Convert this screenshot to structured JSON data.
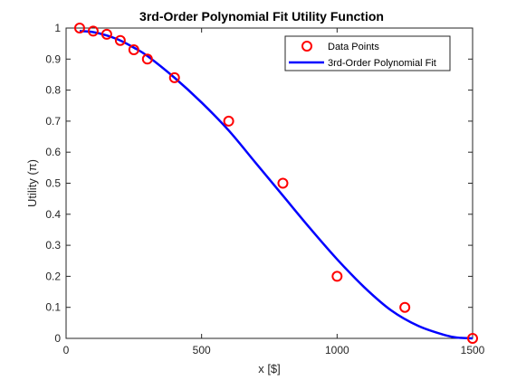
{
  "chart_data": {
    "type": "scatter+line",
    "title": "3rd-Order Polynomial Fit Utility Function",
    "xlabel": "x [$]",
    "ylabel": "Utility (π)",
    "xlim": [
      0,
      1500
    ],
    "ylim": [
      0,
      1
    ],
    "xticks": [
      0,
      500,
      1000,
      1500
    ],
    "yticks": [
      0,
      0.1,
      0.2,
      0.3,
      0.4,
      0.5,
      0.6,
      0.7,
      0.8,
      0.9,
      1
    ],
    "grid": false,
    "legend_location": "top-right",
    "series": [
      {
        "name": "Data Points",
        "kind": "scatter",
        "marker": "circle",
        "color": "#ff0000",
        "x": [
          50,
          100,
          150,
          200,
          250,
          300,
          400,
          600,
          800,
          1000,
          1250,
          1500
        ],
        "y": [
          1.0,
          0.99,
          0.98,
          0.96,
          0.93,
          0.9,
          0.84,
          0.7,
          0.5,
          0.2,
          0.1,
          0.0
        ]
      },
      {
        "name": "3rd-Order Polynomial Fit",
        "kind": "line",
        "color": "#0000ff",
        "x": [
          50,
          100,
          150,
          200,
          250,
          300,
          400,
          500,
          600,
          700,
          800,
          900,
          1000,
          1100,
          1200,
          1300,
          1400,
          1450,
          1500
        ],
        "y": [
          0.99,
          0.987,
          0.976,
          0.96,
          0.937,
          0.91,
          0.84,
          0.76,
          0.67,
          0.565,
          0.46,
          0.355,
          0.255,
          0.165,
          0.09,
          0.04,
          0.01,
          0.002,
          0.0
        ]
      }
    ]
  }
}
